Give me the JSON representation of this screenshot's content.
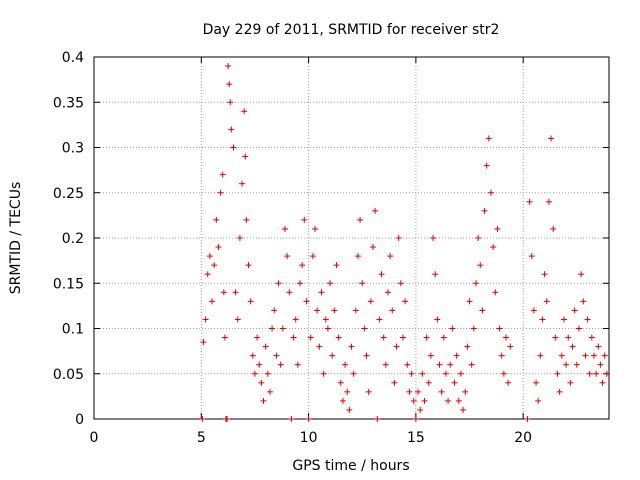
{
  "chart_data": {
    "type": "scatter",
    "title": "Day 229 of 2011, SRMTID for receiver str2",
    "xlabel": "GPS time / hours",
    "ylabel": "SRMTID / TECUs",
    "xlim": [
      0,
      24
    ],
    "ylim": [
      0,
      0.4
    ],
    "grid": true,
    "marker": "+",
    "marker_color": "#e00000",
    "x_ticks": [
      0,
      5,
      10,
      15,
      20
    ],
    "x_tick_labels": [
      "0",
      "5",
      "10",
      "15",
      "20"
    ],
    "y_ticks": [
      0,
      0.05,
      0.1,
      0.15,
      0.2,
      0.25,
      0.3,
      0.35,
      0.4
    ],
    "y_tick_labels": [
      "0",
      "0.05",
      "0.1",
      "0.15",
      "0.2",
      "0.25",
      "0.3",
      "0.35",
      "0.4"
    ],
    "series": [
      {
        "name": "SRMTID str2",
        "points": [
          [
            5.05,
            0.0
          ],
          [
            5.1,
            0.085
          ],
          [
            5.2,
            0.11
          ],
          [
            5.3,
            0.16
          ],
          [
            5.4,
            0.18
          ],
          [
            5.5,
            0.13
          ],
          [
            5.6,
            0.17
          ],
          [
            5.7,
            0.22
          ],
          [
            5.8,
            0.19
          ],
          [
            5.9,
            0.25
          ],
          [
            6.0,
            0.27
          ],
          [
            6.05,
            0.14
          ],
          [
            6.1,
            0.09
          ],
          [
            6.15,
            0.0
          ],
          [
            6.2,
            0.0
          ],
          [
            6.25,
            0.39
          ],
          [
            6.3,
            0.37
          ],
          [
            6.35,
            0.35
          ],
          [
            6.4,
            0.32
          ],
          [
            6.5,
            0.3
          ],
          [
            6.6,
            0.14
          ],
          [
            6.7,
            0.11
          ],
          [
            6.8,
            0.2
          ],
          [
            6.9,
            0.26
          ],
          [
            7.0,
            0.34
          ],
          [
            7.05,
            0.29
          ],
          [
            7.1,
            0.22
          ],
          [
            7.2,
            0.17
          ],
          [
            7.3,
            0.13
          ],
          [
            7.4,
            0.07
          ],
          [
            7.5,
            0.05
          ],
          [
            7.6,
            0.09
          ],
          [
            7.7,
            0.06
          ],
          [
            7.8,
            0.04
          ],
          [
            7.9,
            0.02
          ],
          [
            8.0,
            0.08
          ],
          [
            8.1,
            0.05
          ],
          [
            8.2,
            0.03
          ],
          [
            8.3,
            0.1
          ],
          [
            8.4,
            0.12
          ],
          [
            8.5,
            0.07
          ],
          [
            8.6,
            0.15
          ],
          [
            8.7,
            0.06
          ],
          [
            8.8,
            0.1
          ],
          [
            8.9,
            0.21
          ],
          [
            9.0,
            0.18
          ],
          [
            9.1,
            0.14
          ],
          [
            9.2,
            0.0
          ],
          [
            9.3,
            0.09
          ],
          [
            9.4,
            0.11
          ],
          [
            9.5,
            0.06
          ],
          [
            9.6,
            0.15
          ],
          [
            9.7,
            0.17
          ],
          [
            9.8,
            0.22
          ],
          [
            9.9,
            0.13
          ],
          [
            10.0,
            0.0
          ],
          [
            10.1,
            0.09
          ],
          [
            10.2,
            0.18
          ],
          [
            10.3,
            0.21
          ],
          [
            10.4,
            0.12
          ],
          [
            10.5,
            0.08
          ],
          [
            10.6,
            0.14
          ],
          [
            10.7,
            0.05
          ],
          [
            10.8,
            0.11
          ],
          [
            10.9,
            0.1
          ],
          [
            11.0,
            0.15
          ],
          [
            11.1,
            0.07
          ],
          [
            11.2,
            0.12
          ],
          [
            11.3,
            0.17
          ],
          [
            11.4,
            0.09
          ],
          [
            11.5,
            0.04
          ],
          [
            11.6,
            0.02
          ],
          [
            11.7,
            0.06
          ],
          [
            11.8,
            0.03
          ],
          [
            11.9,
            0.01
          ],
          [
            12.0,
            0.08
          ],
          [
            12.1,
            0.05
          ],
          [
            12.2,
            0.12
          ],
          [
            12.3,
            0.18
          ],
          [
            12.4,
            0.22
          ],
          [
            12.5,
            0.15
          ],
          [
            12.6,
            0.1
          ],
          [
            12.7,
            0.07
          ],
          [
            12.8,
            0.03
          ],
          [
            12.9,
            0.13
          ],
          [
            13.0,
            0.19
          ],
          [
            13.1,
            0.23
          ],
          [
            13.2,
            0.0
          ],
          [
            13.3,
            0.11
          ],
          [
            13.4,
            0.16
          ],
          [
            13.5,
            0.09
          ],
          [
            13.6,
            0.06
          ],
          [
            13.7,
            0.14
          ],
          [
            13.8,
            0.18
          ],
          [
            13.9,
            0.12
          ],
          [
            14.0,
            0.04
          ],
          [
            14.1,
            0.08
          ],
          [
            14.2,
            0.2
          ],
          [
            14.3,
            0.15
          ],
          [
            14.4,
            0.09
          ],
          [
            14.5,
            0.13
          ],
          [
            14.6,
            0.06
          ],
          [
            14.7,
            0.03
          ],
          [
            14.8,
            0.05
          ],
          [
            14.9,
            0.02
          ],
          [
            15.0,
            0.0
          ],
          [
            15.1,
            0.03
          ],
          [
            15.2,
            0.01
          ],
          [
            15.3,
            0.05
          ],
          [
            15.4,
            0.02
          ],
          [
            15.5,
            0.09
          ],
          [
            15.6,
            0.04
          ],
          [
            15.7,
            0.07
          ],
          [
            15.8,
            0.2
          ],
          [
            15.9,
            0.16
          ],
          [
            16.0,
            0.11
          ],
          [
            16.1,
            0.06
          ],
          [
            16.2,
            0.03
          ],
          [
            16.3,
            0.09
          ],
          [
            16.4,
            0.05
          ],
          [
            16.5,
            0.02
          ],
          [
            16.6,
            0.06
          ],
          [
            16.7,
            0.1
          ],
          [
            16.8,
            0.04
          ],
          [
            16.9,
            0.07
          ],
          [
            17.0,
            0.02
          ],
          [
            17.1,
            0.05
          ],
          [
            17.2,
            0.01
          ],
          [
            17.3,
            0.03
          ],
          [
            17.4,
            0.08
          ],
          [
            17.5,
            0.13
          ],
          [
            17.6,
            0.06
          ],
          [
            17.7,
            0.1
          ],
          [
            17.8,
            0.15
          ],
          [
            17.9,
            0.2
          ],
          [
            18.0,
            0.17
          ],
          [
            18.1,
            0.12
          ],
          [
            18.2,
            0.23
          ],
          [
            18.3,
            0.28
          ],
          [
            18.4,
            0.31
          ],
          [
            18.5,
            0.25
          ],
          [
            18.6,
            0.19
          ],
          [
            18.7,
            0.14
          ],
          [
            18.8,
            0.21
          ],
          [
            18.9,
            0.1
          ],
          [
            19.0,
            0.07
          ],
          [
            19.1,
            0.05
          ],
          [
            19.2,
            0.09
          ],
          [
            19.3,
            0.04
          ],
          [
            19.4,
            0.08
          ],
          [
            20.2,
            0.0
          ],
          [
            20.3,
            0.24
          ],
          [
            20.4,
            0.18
          ],
          [
            20.5,
            0.12
          ],
          [
            20.6,
            0.04
          ],
          [
            20.7,
            0.02
          ],
          [
            20.8,
            0.07
          ],
          [
            20.9,
            0.11
          ],
          [
            21.0,
            0.16
          ],
          [
            21.1,
            0.13
          ],
          [
            21.2,
            0.24
          ],
          [
            21.3,
            0.31
          ],
          [
            21.4,
            0.21
          ],
          [
            21.5,
            0.09
          ],
          [
            21.6,
            0.05
          ],
          [
            21.7,
            0.03
          ],
          [
            21.8,
            0.07
          ],
          [
            21.9,
            0.11
          ],
          [
            22.0,
            0.06
          ],
          [
            22.1,
            0.09
          ],
          [
            22.2,
            0.04
          ],
          [
            22.3,
            0.08
          ],
          [
            22.4,
            0.12
          ],
          [
            22.5,
            0.06
          ],
          [
            22.6,
            0.1
          ],
          [
            22.7,
            0.16
          ],
          [
            22.8,
            0.13
          ],
          [
            22.9,
            0.07
          ],
          [
            23.0,
            0.11
          ],
          [
            23.1,
            0.05
          ],
          [
            23.2,
            0.09
          ],
          [
            23.3,
            0.07
          ],
          [
            23.4,
            0.05
          ],
          [
            23.5,
            0.08
          ],
          [
            23.6,
            0.06
          ],
          [
            23.7,
            0.04
          ],
          [
            23.8,
            0.07
          ],
          [
            23.9,
            0.05
          ]
        ]
      }
    ]
  }
}
